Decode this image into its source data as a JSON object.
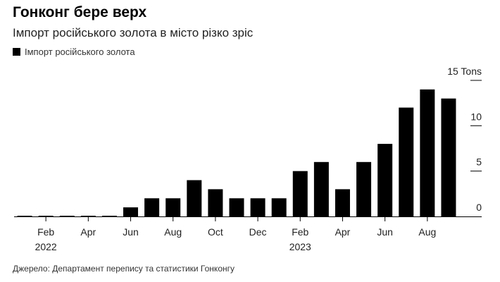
{
  "header": {
    "title": "Гонконг бере верх",
    "subtitle": "Імпорт російського золота в місто різко зріс"
  },
  "footer": {
    "source": "Джерело: Департамент перепису та статистики Гонконгу"
  },
  "chart_data": {
    "type": "bar",
    "categories": [
      "2022-01",
      "2022-02",
      "2022-03",
      "2022-04",
      "2022-05",
      "2022-06",
      "2022-07",
      "2022-08",
      "2022-09",
      "2022-10",
      "2022-11",
      "2022-12",
      "2023-01",
      "2023-02",
      "2023-03",
      "2023-04",
      "2023-05",
      "2023-06",
      "2023-07",
      "2023-08",
      "2023-09"
    ],
    "series": [
      {
        "name": "Імпорт російського золота",
        "color": "#000000",
        "values": [
          0,
          0,
          0,
          0,
          0,
          1,
          2,
          2,
          4,
          3,
          2,
          2,
          2,
          5,
          6,
          3,
          6,
          8,
          12,
          14,
          13
        ]
      }
    ],
    "x_ticks": [
      {
        "category": "2022-02",
        "label": "Feb",
        "year": "2022"
      },
      {
        "category": "2022-04",
        "label": "Apr"
      },
      {
        "category": "2022-06",
        "label": "Jun"
      },
      {
        "category": "2022-08",
        "label": "Aug"
      },
      {
        "category": "2022-10",
        "label": "Oct"
      },
      {
        "category": "2022-12",
        "label": "Dec"
      },
      {
        "category": "2023-02",
        "label": "Feb",
        "year": "2023"
      },
      {
        "category": "2023-04",
        "label": "Apr"
      },
      {
        "category": "2023-06",
        "label": "Jun"
      },
      {
        "category": "2023-08",
        "label": "Aug"
      }
    ],
    "y_ticks": [
      {
        "value": 0,
        "label": "0"
      },
      {
        "value": 5,
        "label": "5"
      },
      {
        "value": 10,
        "label": "10"
      },
      {
        "value": 15,
        "label": "15 Tons"
      }
    ],
    "ylim": [
      0,
      15
    ],
    "grid": false,
    "legend_position": "top-left"
  }
}
